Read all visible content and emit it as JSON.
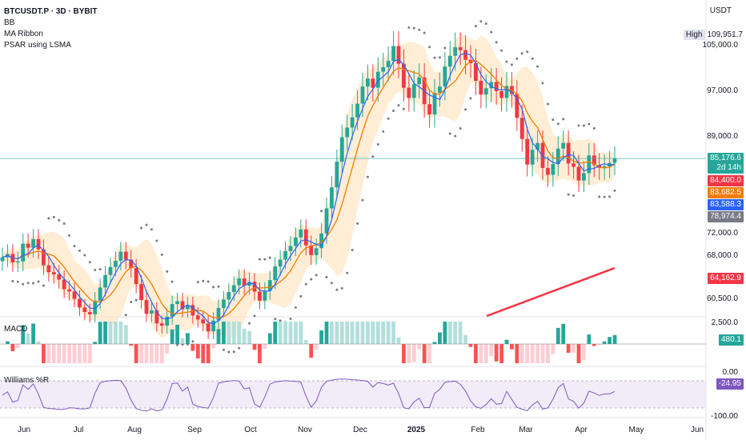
{
  "header": {
    "symbol_line": "BTCUSDT.P · 3D · BYBIT",
    "indicators": [
      "BB",
      "MA Ribbon",
      "PSAR using LSMA"
    ]
  },
  "price_axis": {
    "currency": "USDT",
    "high_label": "High",
    "high_value": "109,951.7",
    "ticks": [
      {
        "label": "105,000.0",
        "value": 105000
      },
      {
        "label": "97,000.0",
        "value": 97000
      },
      {
        "label": "89,000.0",
        "value": 89000
      },
      {
        "label": "72,000.0",
        "value": 72000
      },
      {
        "label": "68,000.0",
        "value": 68000
      },
      {
        "label": "60,500.0",
        "value": 60500
      }
    ],
    "tags": [
      {
        "label": "85,176.6",
        "sub": "2d 14h",
        "value": 85176.6,
        "color": "#26a69a"
      },
      {
        "label": "84,400.0",
        "value": 84400,
        "color": "#f23645"
      },
      {
        "label": "83,682.5",
        "value": 83682.5,
        "color": "#f57c00"
      },
      {
        "label": "83,588.3",
        "value": 83588.3,
        "color": "#2962ff"
      },
      {
        "label": "78,974.4",
        "value": 78974.4,
        "color": "#787b86"
      },
      {
        "label": "64,162.9",
        "value": 64162.9,
        "color": "#f23645"
      }
    ]
  },
  "macd": {
    "title": "MACD",
    "tick": "2,500.0",
    "value_tag": "480.1",
    "tag_color": "#26a69a"
  },
  "williams": {
    "title": "Williams %R",
    "tick_top": "0.00",
    "tick_bottom": "-100.00",
    "value_tag": "-24.95",
    "tag_color": "#7e57c2"
  },
  "time_axis": [
    "Jun",
    "Jul",
    "Aug",
    "Sep",
    "Oct",
    "Nov",
    "Dec",
    "2025",
    "Feb",
    "Mar",
    "Apr",
    "May",
    "Jun"
  ],
  "chart_data": {
    "type": "candlestick",
    "timeframe": "3D",
    "series_candles_close": [
      67800,
      68400,
      66900,
      67100,
      70200,
      69500,
      71000,
      69200,
      66400,
      65200,
      64800,
      63900,
      62200,
      61800,
      60500,
      59000,
      58200,
      57800,
      60200,
      62500,
      64700,
      66100,
      67200,
      68800,
      67400,
      65900,
      63100,
      60300,
      57900,
      58500,
      56200,
      55800,
      57400,
      59600,
      60100,
      58700,
      59400,
      57600,
      56900,
      56200,
      54800,
      56700,
      58900,
      60400,
      61700,
      62900,
      64100,
      62800,
      63500,
      61800,
      60200,
      61900,
      63800,
      66200,
      67400,
      68900,
      69800,
      71300,
      72700,
      69900,
      68200,
      69400,
      72000,
      76400,
      80100,
      84600,
      88900,
      90600,
      92400,
      94800,
      97800,
      99200,
      97600,
      100400,
      101200,
      102300,
      104900,
      101800,
      97600,
      95800,
      98200,
      99400,
      94700,
      92900,
      96700,
      97800,
      101300,
      103200,
      104700,
      104200,
      102500,
      101900,
      98800,
      96400,
      97500,
      98600,
      97000,
      95800,
      97900,
      96500,
      92300,
      88600,
      84100,
      86700,
      87900,
      83500,
      82300,
      84200,
      86900,
      87900,
      84300,
      83700,
      81300,
      82600,
      85700,
      84000,
      83500,
      83800,
      84400,
      85176
    ]
  }
}
